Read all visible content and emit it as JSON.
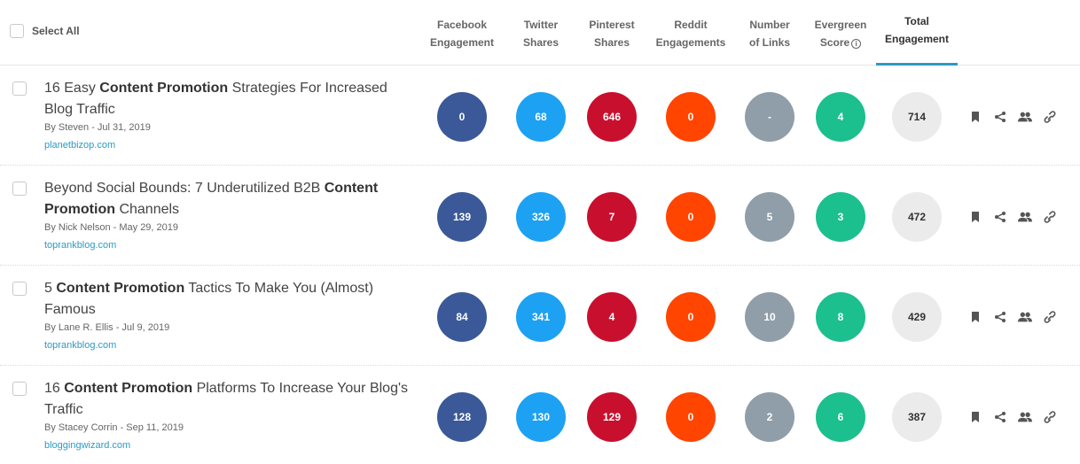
{
  "header": {
    "select_all_label": "Select All",
    "columns": [
      {
        "l1": "Facebook",
        "l2": "Engagement"
      },
      {
        "l1": "Twitter",
        "l2": "Shares"
      },
      {
        "l1": "Pinterest",
        "l2": "Shares"
      },
      {
        "l1": "Reddit",
        "l2": "Engagements"
      },
      {
        "l1": "Number",
        "l2": "of Links"
      },
      {
        "l1": "Evergreen",
        "l2": "Score"
      },
      {
        "l1": "Total",
        "l2": "Engagement"
      }
    ],
    "info_icon": "i",
    "active_color": "#2a9bc4"
  },
  "colors": {
    "facebook": "#3b5998",
    "twitter": "#1da1f2",
    "pinterest": "#c8102e",
    "reddit": "#ff4500",
    "links": "#8f9ea8",
    "evergreen": "#1cbf8e",
    "total": "#ebebeb",
    "link_text": "#2a9bc4"
  },
  "rows": [
    {
      "title_pre": "16 Easy ",
      "title_bold": "Content Promotion",
      "title_post": " Strategies For Increased Blog Traffic",
      "meta": "By Steven - Jul 31, 2019",
      "domain": "planetbizop.com",
      "facebook": "0",
      "twitter": "68",
      "pinterest": "646",
      "reddit": "0",
      "links": "-",
      "evergreen": "4",
      "total": "714"
    },
    {
      "title_pre": "Beyond Social Bounds: 7 Underutilized B2B ",
      "title_bold": "Content Promotion",
      "title_post": " Channels",
      "meta": "By Nick Nelson - May 29, 2019",
      "domain": "toprankblog.com",
      "facebook": "139",
      "twitter": "326",
      "pinterest": "7",
      "reddit": "0",
      "links": "5",
      "evergreen": "3",
      "total": "472"
    },
    {
      "title_pre": "5 ",
      "title_bold": "Content Promotion",
      "title_post": " Tactics To Make You (Almost) Famous",
      "meta": "By Lane R. Ellis - Jul 9, 2019",
      "domain": "toprankblog.com",
      "facebook": "84",
      "twitter": "341",
      "pinterest": "4",
      "reddit": "0",
      "links": "10",
      "evergreen": "8",
      "total": "429"
    },
    {
      "title_pre": "16 ",
      "title_bold": "Content Promotion",
      "title_post": " Platforms To Increase Your Blog's Traffic",
      "meta": "By Stacey Corrin - Sep 11, 2019",
      "domain": "bloggingwizard.com",
      "facebook": "128",
      "twitter": "130",
      "pinterest": "129",
      "reddit": "0",
      "links": "2",
      "evergreen": "6",
      "total": "387"
    }
  ],
  "action_icons": [
    "bookmark-icon",
    "share-icon",
    "users-icon",
    "link-icon"
  ]
}
